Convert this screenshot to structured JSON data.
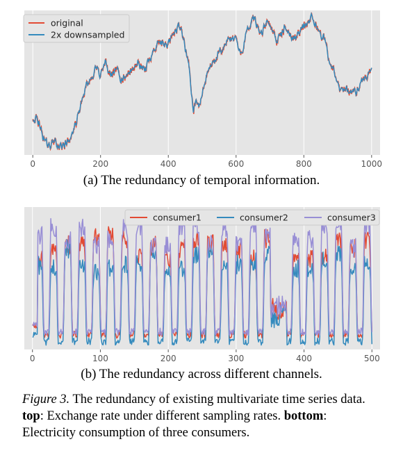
{
  "charts": [
    {
      "type": "line",
      "legend_position": "upper-left",
      "xlim": [
        -25,
        1025
      ],
      "ylim": [
        0,
        1
      ],
      "y_hidden": true,
      "x_ticks": [
        0,
        200,
        400,
        600,
        800,
        1000
      ],
      "x_tick_labels": [
        "0",
        "200",
        "400",
        "600",
        "800",
        "1000"
      ],
      "grid": true,
      "series": [
        {
          "name": "original",
          "color": "#e24a33"
        },
        {
          "name": "2x downsampled",
          "color": "#348abd"
        }
      ],
      "keypoints": [
        [
          0,
          0.26
        ],
        [
          10,
          0.25
        ],
        [
          25,
          0.17
        ],
        [
          35,
          0.09
        ],
        [
          50,
          0.07
        ],
        [
          65,
          0.1
        ],
        [
          80,
          0.05
        ],
        [
          100,
          0.08
        ],
        [
          115,
          0.14
        ],
        [
          130,
          0.22
        ],
        [
          145,
          0.38
        ],
        [
          160,
          0.47
        ],
        [
          175,
          0.55
        ],
        [
          185,
          0.6
        ],
        [
          200,
          0.56
        ],
        [
          215,
          0.63
        ],
        [
          230,
          0.55
        ],
        [
          250,
          0.58
        ],
        [
          260,
          0.52
        ],
        [
          270,
          0.54
        ],
        [
          290,
          0.58
        ],
        [
          310,
          0.64
        ],
        [
          330,
          0.57
        ],
        [
          345,
          0.68
        ],
        [
          360,
          0.73
        ],
        [
          375,
          0.78
        ],
        [
          390,
          0.75
        ],
        [
          405,
          0.8
        ],
        [
          420,
          0.85
        ],
        [
          430,
          0.9
        ],
        [
          440,
          0.86
        ],
        [
          450,
          0.75
        ],
        [
          460,
          0.66
        ],
        [
          465,
          0.5
        ],
        [
          470,
          0.4
        ],
        [
          475,
          0.28
        ],
        [
          480,
          0.37
        ],
        [
          490,
          0.32
        ],
        [
          500,
          0.42
        ],
        [
          510,
          0.52
        ],
        [
          525,
          0.62
        ],
        [
          540,
          0.66
        ],
        [
          555,
          0.71
        ],
        [
          570,
          0.76
        ],
        [
          580,
          0.8
        ],
        [
          600,
          0.82
        ],
        [
          610,
          0.7
        ],
        [
          620,
          0.74
        ],
        [
          630,
          0.83
        ],
        [
          640,
          0.88
        ],
        [
          650,
          0.96
        ],
        [
          660,
          0.9
        ],
        [
          670,
          0.84
        ],
        [
          680,
          0.87
        ],
        [
          695,
          0.92
        ],
        [
          710,
          0.86
        ],
        [
          720,
          0.79
        ],
        [
          735,
          0.84
        ],
        [
          750,
          0.88
        ],
        [
          765,
          0.8
        ],
        [
          780,
          0.84
        ],
        [
          795,
          0.88
        ],
        [
          810,
          0.92
        ],
        [
          825,
          0.94
        ],
        [
          840,
          0.88
        ],
        [
          855,
          0.82
        ],
        [
          865,
          0.78
        ],
        [
          875,
          0.64
        ],
        [
          885,
          0.6
        ],
        [
          895,
          0.54
        ],
        [
          905,
          0.46
        ],
        [
          915,
          0.47
        ],
        [
          930,
          0.44
        ],
        [
          945,
          0.46
        ],
        [
          955,
          0.42
        ],
        [
          965,
          0.48
        ],
        [
          980,
          0.52
        ],
        [
          995,
          0.57
        ],
        [
          1000,
          0.56
        ]
      ]
    },
    {
      "type": "line",
      "legend_position": "upper-right",
      "xlim": [
        -12,
        512
      ],
      "ylim": [
        0,
        1
      ],
      "y_hidden": true,
      "x_ticks": [
        0,
        100,
        200,
        300,
        400,
        500
      ],
      "x_tick_labels": [
        "0",
        "100",
        "200",
        "300",
        "400",
        "500"
      ],
      "grid": true,
      "series": [
        {
          "name": "consumer1",
          "color": "#e24a33",
          "base": 0.08,
          "amp": 0.62,
          "seed": 3
        },
        {
          "name": "consumer2",
          "color": "#348abd",
          "base": 0.03,
          "amp": 0.58,
          "seed": 7
        },
        {
          "name": "consumer3",
          "color": "#988ed5",
          "base": 0.1,
          "amp": 0.68,
          "seed": 11
        }
      ],
      "period": 21,
      "phase": 4
    }
  ],
  "subcaptions": {
    "a": "(a)  The redundancy of temporal information.",
    "b": "(b)  The redundancy across different channels."
  },
  "caption": {
    "label": "Figure 3.",
    "text1": " The redundancy of existing multivariate time series data. ",
    "top_bold": "top",
    "text2": ": Exchange rate under different sampling rates. ",
    "bottom_bold": "bottom",
    "text3": ": Electricity consumption of three consumers."
  }
}
